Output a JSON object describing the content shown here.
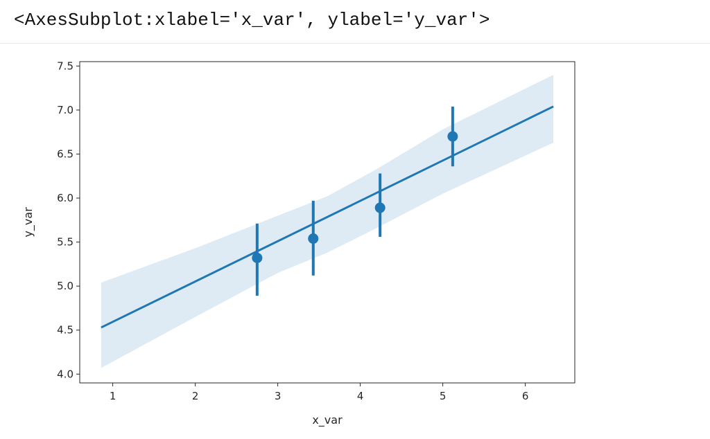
{
  "output": {
    "repr_text": "<AxesSubplot:xlabel='x_var', ylabel='y_var'>"
  },
  "colors": {
    "series": "#1f77b4",
    "band": "#1f77b4",
    "axes": "#262626",
    "background": "#ffffff"
  },
  "chart_data": {
    "type": "scatter",
    "title": "",
    "xlabel": "x_var",
    "ylabel": "y_var",
    "xlim": [
      0.6,
      6.6
    ],
    "ylim": [
      3.9,
      7.55
    ],
    "xticks": [
      1,
      2,
      3,
      4,
      5,
      6
    ],
    "yticks": [
      4.0,
      4.5,
      5.0,
      5.5,
      6.0,
      6.5,
      7.0,
      7.5
    ],
    "xtick_labels": [
      "1",
      "2",
      "3",
      "4",
      "5",
      "6"
    ],
    "ytick_labels": [
      "4.0",
      "4.5",
      "5.0",
      "5.5",
      "6.0",
      "6.5",
      "7.0",
      "7.5"
    ],
    "grid": false,
    "legend": "none",
    "series": [
      {
        "x": [
          2.75,
          3.43,
          4.24,
          5.12
        ],
        "y": [
          5.32,
          5.54,
          5.89,
          6.7
        ],
        "ci_low": [
          4.89,
          5.12,
          5.56,
          6.36
        ],
        "ci_high": [
          5.71,
          5.97,
          6.28,
          7.04
        ]
      }
    ],
    "regression": {
      "x": [
        0.86,
        6.34
      ],
      "y": [
        4.53,
        7.04
      ],
      "band": {
        "x": [
          0.86,
          2.0,
          3.0,
          3.6,
          4.2,
          5.0,
          6.34
        ],
        "lower": [
          4.07,
          4.65,
          5.15,
          5.38,
          5.66,
          6.05,
          6.63
        ],
        "upper": [
          5.04,
          5.43,
          5.8,
          6.02,
          6.33,
          6.78,
          7.4
        ]
      }
    }
  }
}
